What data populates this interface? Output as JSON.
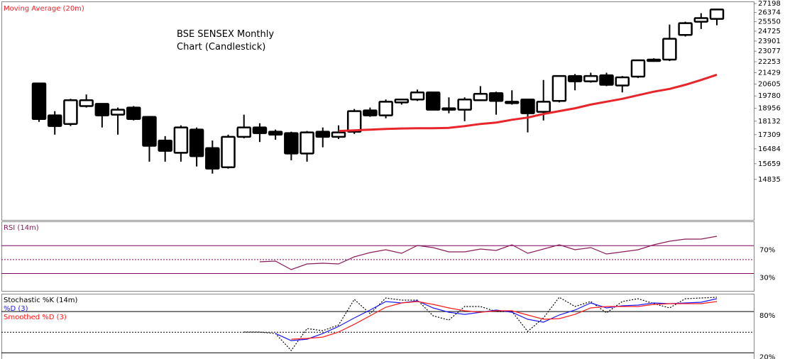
{
  "chart_data": [
    {
      "type": "candlestick",
      "title": "BSE SENSEX Monthly Chart (Candlestick)",
      "ylim": [
        12900,
        27400
      ],
      "log": true,
      "yticks": [
        14835,
        15659,
        16484,
        17309,
        18132,
        18956,
        19780,
        20605,
        21429,
        22253,
        23077,
        23901,
        24725,
        25550,
        26374,
        27198
      ],
      "up_color": "#ffffff",
      "down_color": "#000000",
      "open": [
        20653,
        18496,
        17960,
        19101,
        19247,
        18542,
        19004,
        18404,
        16962,
        16259,
        17614,
        16527,
        15471,
        17179,
        17743,
        17487,
        17400,
        16221,
        17487,
        17179,
        17487,
        18818,
        18496,
        19344,
        19538,
        20023,
        18956,
        18864,
        19489,
        19975,
        19392,
        19538,
        18726,
        19441,
        21189,
        20805,
        21237,
        20508,
        21141,
        22418,
        22418,
        24410,
        25550,
        25800
      ],
      "high": [
        20653,
        18772,
        19586,
        19878,
        19247,
        19004,
        19101,
        18404,
        17222,
        17873,
        17743,
        16962,
        17309,
        18542,
        18003,
        17614,
        17487,
        17530,
        17743,
        17873,
        18910,
        19004,
        19538,
        19586,
        20217,
        20072,
        19683,
        19683,
        20460,
        20072,
        20169,
        19586,
        20901,
        21189,
        21333,
        21429,
        21429,
        21189,
        22418,
        22527,
        25298,
        25550,
        26311,
        26720
      ],
      "low": [
        18089,
        17309,
        17830,
        19004,
        17743,
        17309,
        18178,
        15771,
        15771,
        15771,
        15509,
        15134,
        15396,
        17092,
        16875,
        17006,
        15846,
        15771,
        16570,
        17049,
        17352,
        18404,
        18312,
        19198,
        19441,
        18864,
        18634,
        18132,
        19441,
        18542,
        19198,
        17444,
        18178,
        19344,
        20169,
        20709,
        20460,
        20023,
        21045,
        22253,
        22308,
        24280,
        24914,
        25235
      ],
      "close": [
        18266,
        17830,
        19489,
        19489,
        18496,
        18864,
        18266,
        16657,
        16371,
        17743,
        16071,
        15396,
        17179,
        17743,
        17400,
        17309,
        16221,
        17444,
        17179,
        17444,
        18772,
        18496,
        19392,
        19538,
        20023,
        18864,
        18864,
        19538,
        19926,
        19441,
        19295,
        18634,
        19392,
        21189,
        20805,
        21189,
        20557,
        21093,
        22363,
        22308,
        24090,
        25424,
        25870,
        26646
      ],
      "series": [
        {
          "name": "Moving Average (20m)",
          "color": "#e8252a",
          "values": [
            null,
            null,
            null,
            null,
            null,
            null,
            null,
            null,
            null,
            null,
            null,
            null,
            null,
            null,
            null,
            null,
            null,
            null,
            null,
            17530,
            17571,
            17614,
            17657,
            17679,
            17700,
            17700,
            17722,
            17830,
            17960,
            18046,
            18220,
            18358,
            18588,
            18772,
            18956,
            19198,
            19392,
            19586,
            19829,
            20072,
            20266,
            20557,
            20901,
            21285
          ]
        }
      ]
    },
    {
      "type": "line",
      "ylim": [
        5,
        105
      ],
      "midline": 50,
      "level_color": "#800060",
      "yticks": [
        {
          "value": 30,
          "label": "30%"
        },
        {
          "value": 70,
          "label": "70%"
        }
      ],
      "series": [
        {
          "name": "RSI (14m)",
          "color": "#8b1a5a",
          "values": [
            null,
            null,
            null,
            null,
            null,
            null,
            null,
            null,
            null,
            null,
            null,
            null,
            null,
            null,
            46.8,
            47.9,
            35.6,
            43.8,
            44.8,
            43.8,
            54.0,
            60.1,
            64.2,
            59.1,
            70.3,
            67.2,
            61.1,
            61.1,
            65.2,
            63.2,
            71.3,
            59.1,
            65.2,
            71.3,
            64.2,
            67.2,
            58.1,
            61.1,
            64.2,
            71.3,
            76.4,
            79.5,
            79.5,
            83.6
          ]
        }
      ]
    },
    {
      "type": "line",
      "ylim": [
        11,
        106
      ],
      "midline": 50,
      "level_color": "#000000",
      "yticks": [
        {
          "value": 20,
          "label": "20%"
        },
        {
          "value": 80,
          "label": "80%"
        }
      ],
      "series": [
        {
          "name": "Stochastic %K (14m)",
          "color": "#000000",
          "dash": "dotted",
          "values": [
            null,
            null,
            null,
            null,
            null,
            null,
            null,
            null,
            null,
            null,
            null,
            null,
            null,
            50.2,
            50.2,
            48.1,
            23.3,
            55.3,
            52.2,
            60.5,
            97.7,
            77.0,
            99.8,
            96.7,
            96.7,
            73.9,
            67.7,
            87.4,
            87.4,
            80.1,
            80.1,
            51.2,
            70.8,
            100.8,
            87.4,
            94.6,
            78.1,
            94.6,
            98.8,
            91.5,
            85.3,
            98.8,
            99.8,
            100.8
          ]
        },
        {
          "name": "%D (3)",
          "color": "#1a1aff",
          "values": [
            null,
            null,
            null,
            null,
            null,
            null,
            null,
            null,
            null,
            null,
            null,
            null,
            null,
            null,
            null,
            48.1,
            37.7,
            39.8,
            48.1,
            58.4,
            70.8,
            82.2,
            94.6,
            92.6,
            95.7,
            85.3,
            79.1,
            76.0,
            79.1,
            82.2,
            79.1,
            68.8,
            64.6,
            75.0,
            82.2,
            92.6,
            85.3,
            88.4,
            89.5,
            92.6,
            91.5,
            92.6,
            93.6,
            98.8
          ]
        },
        {
          "name": "Smoothed %D (3)",
          "color": "#ff1a1a",
          "values": [
            null,
            null,
            null,
            null,
            null,
            null,
            null,
            null,
            null,
            null,
            null,
            null,
            null,
            null,
            null,
            null,
            39.8,
            40.9,
            42.9,
            50.2,
            61.5,
            73.9,
            86.4,
            92.6,
            94.6,
            90.5,
            85.3,
            81.2,
            79.1,
            81.2,
            81.2,
            75.0,
            68.8,
            69.8,
            76.0,
            85.3,
            87.4,
            87.4,
            87.4,
            90.5,
            91.5,
            91.5,
            91.5,
            94.6
          ]
        }
      ]
    }
  ]
}
